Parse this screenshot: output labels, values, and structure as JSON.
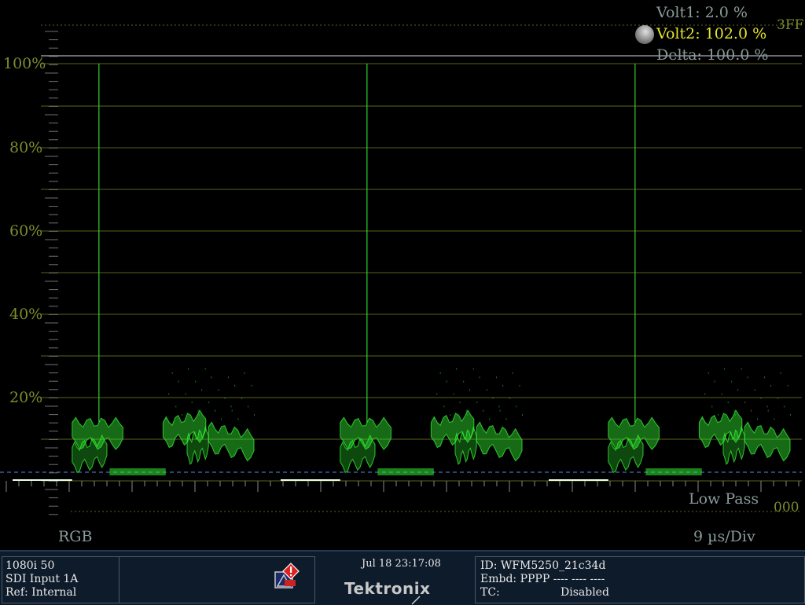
{
  "scope": {
    "format_label": "RGB",
    "sweep_label": "9 µs/Div",
    "filter_label": "Low Pass",
    "top_code": "3FF",
    "bottom_code": "000",
    "y_ticks": [
      "100%",
      "80%",
      "60%",
      "40%",
      "20%"
    ],
    "cursors": {
      "volt1": "Volt1: 2.0 %",
      "volt2": "Volt2: 102.0 %",
      "delta": "Delta:   100.0 %"
    },
    "colors": {
      "trace": "#33ee33",
      "graticule": "#5b6418",
      "tick_label": "#7f8a2e",
      "cursor_active": "#e5e52a",
      "cursor_text": "#8a9a9a",
      "baseline_cursor": "#3a5aa0"
    }
  },
  "statusbar": {
    "format": "1080i 50",
    "input": "SDI Input 1A",
    "ref": "Ref: Internal",
    "alarm_icon": "alarm-warning-icon",
    "datetime": "Jul 18 23:17:08",
    "brand": "Tektronix",
    "id": "ID: WFM5250_21c34d",
    "embd": "Embd: PPPP ---- ---- ----",
    "tc_label": "TC:",
    "tc_value": "Disabled"
  },
  "chart_data": {
    "type": "line",
    "title": "",
    "xlabel": "",
    "ylabel": "",
    "y_ticks": [
      "100%",
      "80%",
      "60%",
      "40%",
      "20%"
    ],
    "ylim": [
      -7,
      107
    ],
    "grid": true,
    "series": [
      {
        "values_percent": [
          0,
          12,
          14,
          13,
          2,
          2,
          2,
          14,
          17,
          13,
          2,
          13,
          14,
          12,
          0
        ]
      }
    ],
    "spikes_percent": [
      100,
      100,
      100
    ],
    "cursors_percent": [
      2.0,
      102.0
    ]
  }
}
